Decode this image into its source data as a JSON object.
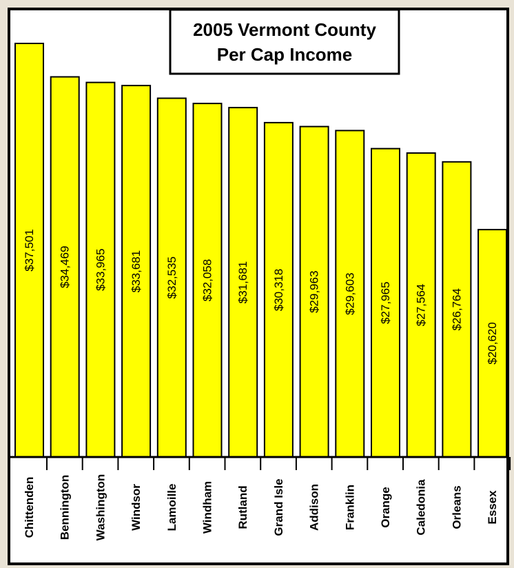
{
  "chart_data": {
    "type": "bar",
    "title_lines": [
      "2005 Vermont County",
      "Per Cap Income"
    ],
    "categories": [
      "Chittenden",
      "Bennington",
      "Washington",
      "Windsor",
      "Lamoille",
      "Windham",
      "Rutland",
      "Grand Isle",
      "Addison",
      "Franklin",
      "Orange",
      "Caledonia",
      "Orleans",
      "Essex"
    ],
    "values": [
      37501,
      34469,
      33965,
      33681,
      32535,
      32058,
      31681,
      30318,
      29963,
      29603,
      27965,
      27564,
      26764,
      20620
    ],
    "value_labels": [
      "$37,501",
      "$34,469",
      "$33,965",
      "$33,681",
      "$32,535",
      "$32,058",
      "$31,681",
      "$30,318",
      "$29,963",
      "$29,603",
      "$27,965",
      "$27,564",
      "$26,764",
      "$20,620"
    ],
    "colors": {
      "bar": "#ffff00",
      "panel": "#ffffff",
      "outline": "#000000",
      "backdrop": "#e9e3d6"
    }
  }
}
